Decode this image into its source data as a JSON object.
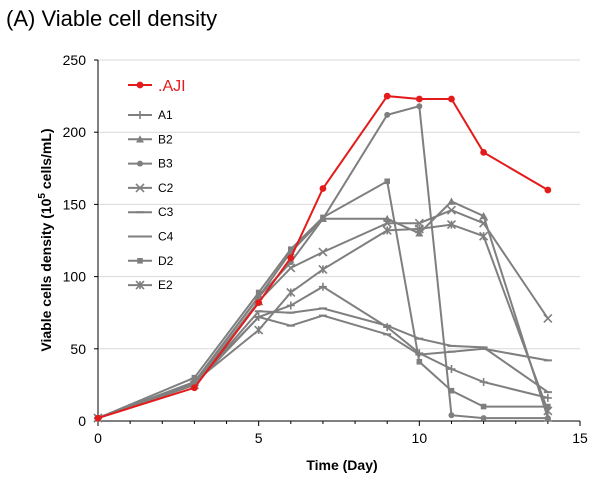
{
  "chart_data": {
    "type": "line",
    "title": "(A) Viable cell density",
    "xlabel": "Time (Day)",
    "ylabel": "Viable cells density (10",
    "ylabel_sup": "5",
    "ylabel_tail": " cells/mL)",
    "xlim": [
      0,
      15
    ],
    "ylim": [
      0,
      250
    ],
    "x_ticks": [
      0,
      5,
      10,
      15
    ],
    "y_ticks": [
      0,
      50,
      100,
      150,
      200,
      250
    ],
    "grid": "horizontal",
    "legend_position": "top-left",
    "series": [
      {
        "name": ".AJI",
        "color": "#e41b1b",
        "marker": "circle",
        "highlight": true,
        "points": [
          [
            0,
            2
          ],
          [
            3,
            23
          ],
          [
            5,
            82
          ],
          [
            6,
            113
          ],
          [
            7,
            161
          ],
          [
            9,
            225
          ],
          [
            10,
            223
          ],
          [
            11,
            223
          ],
          [
            12,
            186
          ],
          [
            14,
            160
          ]
        ]
      },
      {
        "name": "A1",
        "color": "#7f7f7f",
        "marker": "plus",
        "points": [
          [
            0,
            2
          ],
          [
            3,
            26
          ],
          [
            5,
            72
          ],
          [
            6,
            80
          ],
          [
            7,
            93
          ],
          [
            9,
            65
          ],
          [
            10,
            47
          ],
          [
            11,
            36
          ],
          [
            12,
            27
          ],
          [
            14,
            16
          ]
        ]
      },
      {
        "name": "B2",
        "color": "#7f7f7f",
        "marker": "triangle",
        "points": [
          [
            0,
            2
          ],
          [
            3,
            27
          ],
          [
            5,
            86
          ],
          [
            6,
            117
          ],
          [
            7,
            140
          ],
          [
            9,
            140
          ],
          [
            10,
            130
          ],
          [
            11,
            152
          ],
          [
            12,
            142
          ],
          [
            14,
            2
          ]
        ]
      },
      {
        "name": "B3",
        "color": "#7f7f7f",
        "marker": "circle",
        "points": [
          [
            0,
            2
          ],
          [
            3,
            27
          ],
          [
            5,
            86
          ],
          [
            6,
            110
          ],
          [
            7,
            140
          ],
          [
            9,
            212
          ],
          [
            10,
            218
          ],
          [
            11,
            4
          ],
          [
            12,
            2
          ],
          [
            14,
            2
          ]
        ]
      },
      {
        "name": "C2",
        "color": "#7f7f7f",
        "marker": "x",
        "points": [
          [
            0,
            2
          ],
          [
            3,
            25
          ],
          [
            5,
            83
          ],
          [
            6,
            106
          ],
          [
            7,
            117
          ],
          [
            9,
            137
          ],
          [
            10,
            137
          ],
          [
            11,
            146
          ],
          [
            12,
            137
          ],
          [
            14,
            71
          ]
        ]
      },
      {
        "name": "C3",
        "color": "#7f7f7f",
        "marker": "dash",
        "points": [
          [
            0,
            2
          ],
          [
            3,
            25
          ],
          [
            5,
            76
          ],
          [
            6,
            75
          ],
          [
            7,
            78
          ],
          [
            9,
            66
          ],
          [
            10,
            57
          ],
          [
            11,
            52
          ],
          [
            12,
            51
          ],
          [
            14,
            20
          ]
        ]
      },
      {
        "name": "C4",
        "color": "#7f7f7f",
        "marker": "dash",
        "points": [
          [
            0,
            2
          ],
          [
            3,
            25
          ],
          [
            5,
            72
          ],
          [
            6,
            66
          ],
          [
            7,
            73
          ],
          [
            9,
            60
          ],
          [
            10,
            46
          ],
          [
            11,
            48
          ],
          [
            12,
            50
          ],
          [
            14,
            42
          ]
        ]
      },
      {
        "name": "D2",
        "color": "#7f7f7f",
        "marker": "square",
        "points": [
          [
            0,
            2
          ],
          [
            3,
            30
          ],
          [
            5,
            89
          ],
          [
            6,
            119
          ],
          [
            7,
            141
          ],
          [
            9,
            166
          ],
          [
            10,
            41
          ],
          [
            11,
            21
          ],
          [
            12,
            10
          ],
          [
            14,
            10
          ]
        ]
      },
      {
        "name": "E2",
        "color": "#7f7f7f",
        "marker": "asterisk",
        "points": [
          [
            0,
            2
          ],
          [
            3,
            27
          ],
          [
            5,
            63
          ],
          [
            6,
            89
          ],
          [
            7,
            105
          ],
          [
            9,
            132
          ],
          [
            10,
            133
          ],
          [
            11,
            136
          ],
          [
            12,
            128
          ],
          [
            14,
            7
          ]
        ]
      }
    ]
  }
}
